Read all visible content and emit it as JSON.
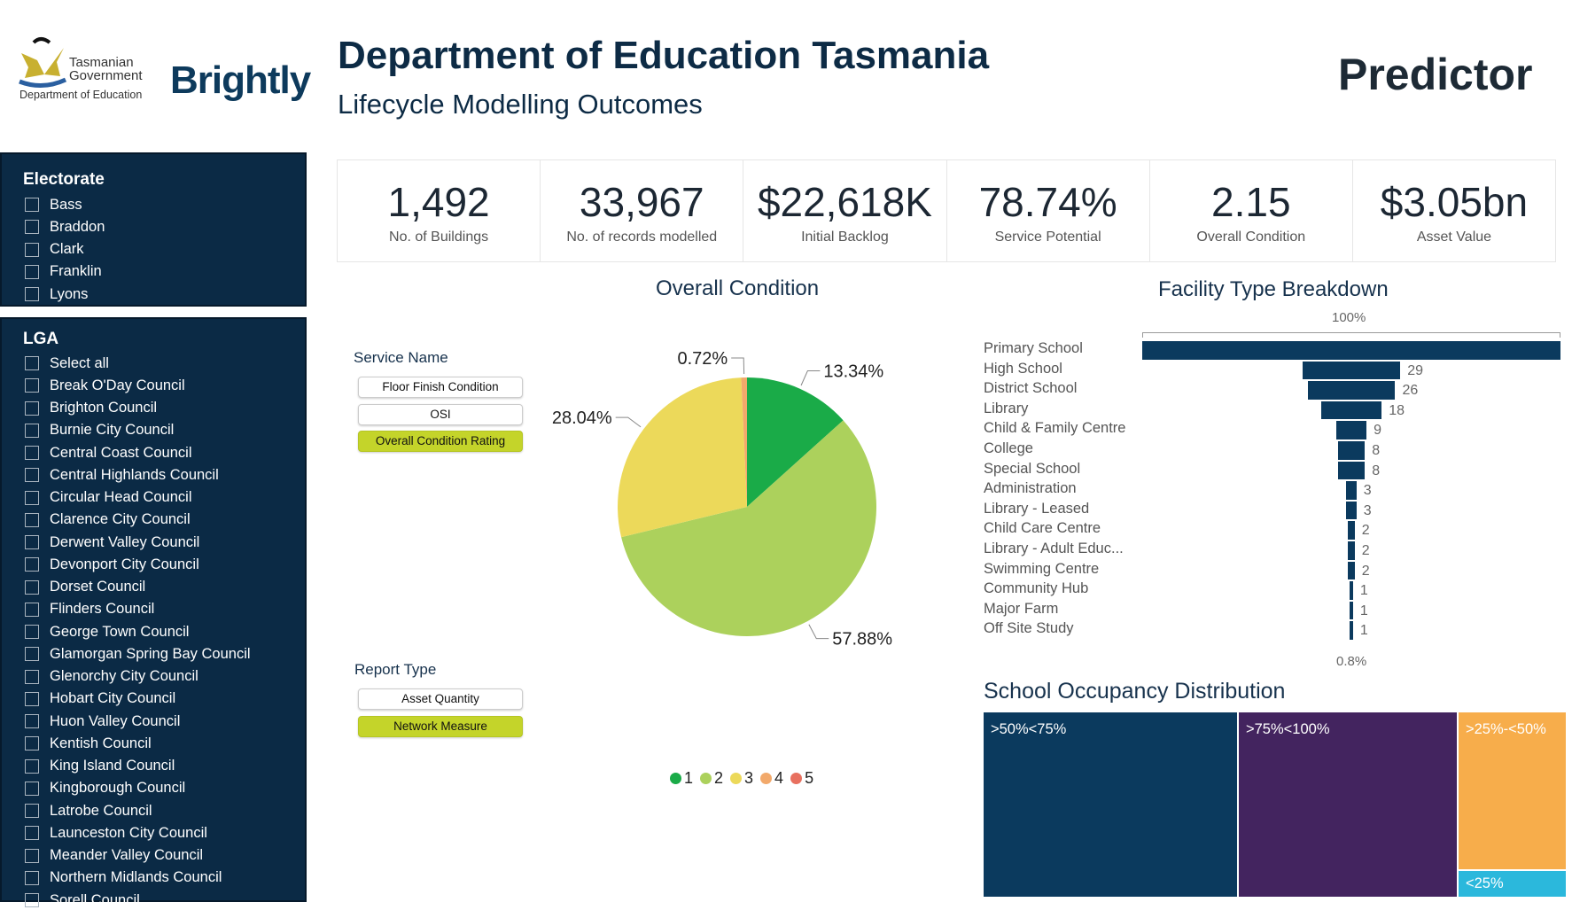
{
  "header": {
    "org_logo_lines": [
      "Tasmanian",
      "Government",
      "Department of Education"
    ],
    "brand_logo": "Brightly",
    "title": "Department of Education Tasmania",
    "subtitle": "Lifecycle Modelling Outcomes",
    "product": "Predictor"
  },
  "electorate": {
    "title": "Electorate",
    "items": [
      "Bass",
      "Braddon",
      "Clark",
      "Franklin",
      "Lyons"
    ]
  },
  "lga": {
    "title": "LGA",
    "items": [
      "Select all",
      "Break O'Day Council",
      "Brighton Council",
      "Burnie City Council",
      "Central Coast Council",
      "Central Highlands Council",
      "Circular Head Council",
      "Clarence City Council",
      "Derwent Valley Council",
      "Devonport City Council",
      "Dorset Council",
      "Flinders Council",
      "George Town Council",
      "Glamorgan Spring Bay Council",
      "Glenorchy City Council",
      "Hobart City Council",
      "Huon Valley Council",
      "Kentish Council",
      "King Island Council",
      "Kingborough Council",
      "Latrobe Council",
      "Launceston City Council",
      "Meander Valley Council",
      "Northern Midlands Council",
      "Sorell Council"
    ]
  },
  "kpis": [
    {
      "value": "1,492",
      "label": "No. of Buildings"
    },
    {
      "value": "33,967",
      "label": "No. of records modelled"
    },
    {
      "value": "$22,618K",
      "label": "Initial Backlog"
    },
    {
      "value": "78.74%",
      "label": "Service Potential"
    },
    {
      "value": "2.15",
      "label": "Overall Condition"
    },
    {
      "value": "$3.05bn",
      "label": "Asset Value"
    }
  ],
  "service_name": {
    "label": "Service Name",
    "options": [
      "Floor Finish Condition",
      "OSI",
      "Overall Condition Rating"
    ],
    "selected": "Overall Condition Rating"
  },
  "report_type": {
    "label": "Report Type",
    "options": [
      "Asset Quantity",
      "Network Measure"
    ],
    "selected": "Network Measure"
  },
  "accent": "#c4d42a",
  "chart_data": [
    {
      "type": "pie",
      "title": "Overall Condition",
      "categories": [
        "1",
        "2",
        "3",
        "4",
        "5"
      ],
      "values": [
        13.34,
        57.88,
        28.04,
        0.72,
        0
      ],
      "labels": [
        "13.34%",
        "57.88%",
        "28.04%",
        "0.72%",
        ""
      ],
      "colors": [
        "#1aab48",
        "#acd15c",
        "#ecd95a",
        "#f2a96b",
        "#e8705f"
      ],
      "legend": "bottom"
    },
    {
      "type": "bar",
      "subtype": "funnel",
      "title": "Facility Type Breakdown",
      "categories": [
        "Primary School",
        "High School",
        "District School",
        "Library",
        "Child & Family Centre",
        "College",
        "Special School",
        "Administration",
        "Library - Leased",
        "Child Care Centre",
        "Library - Adult Educ...",
        "Swimming Centre",
        "Community Hub",
        "Major Farm",
        "Off Site Study"
      ],
      "values": [
        124,
        29,
        26,
        18,
        9,
        8,
        8,
        3,
        3,
        2,
        2,
        2,
        1,
        1,
        1
      ],
      "value_labels": [
        "",
        "29",
        "26",
        "18",
        "9",
        "8",
        "8",
        "3",
        "3",
        "2",
        "2",
        "2",
        "1",
        "1",
        "1"
      ],
      "top_label": "100%",
      "bottom_label": "0.8%",
      "color": "#0b3a5e"
    },
    {
      "type": "treemap",
      "title": "School Occupancy Distribution",
      "categories": [
        ">50%<75%",
        ">75%<100%",
        ">25%-<50%",
        "<25%"
      ],
      "colors": [
        "#0b3a5e",
        "#43245f",
        "#f7ad4b",
        "#2bb8dc"
      ]
    }
  ]
}
